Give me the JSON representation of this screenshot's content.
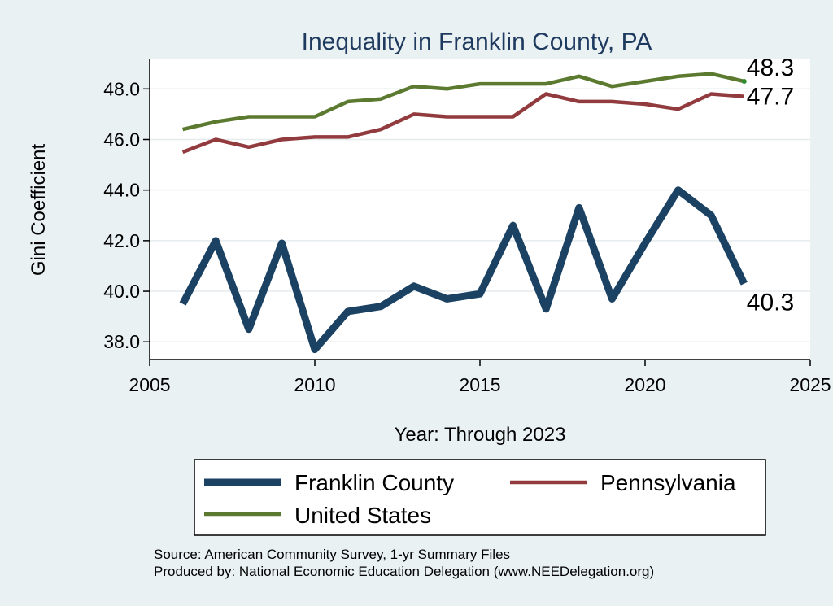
{
  "chart_data": {
    "type": "line",
    "title": "Inequality in Franklin County, PA",
    "xlabel": "Year: Through 2023",
    "ylabel": "Gini Coefficient",
    "xlim": [
      2005,
      2025
    ],
    "ylim": [
      37.3,
      49.2
    ],
    "xticks": [
      2005,
      2010,
      2015,
      2020,
      2025
    ],
    "yticks": [
      38,
      40,
      42,
      44,
      46,
      48
    ],
    "ytick_labels": [
      "38.0",
      "40.0",
      "42.0",
      "44.0",
      "46.0",
      "48.0"
    ],
    "grid": true,
    "legend_position": "bottom",
    "x": [
      2006,
      2007,
      2008,
      2009,
      2010,
      2011,
      2012,
      2013,
      2014,
      2015,
      2016,
      2017,
      2018,
      2019,
      2020,
      2021,
      2022,
      2023
    ],
    "series": [
      {
        "name": "Franklin County",
        "color": "#1b4263",
        "values": [
          39.5,
          42.0,
          38.5,
          41.9,
          37.7,
          39.2,
          39.4,
          40.2,
          39.7,
          39.9,
          42.6,
          39.3,
          43.3,
          39.7,
          41.9,
          44.0,
          43.0,
          40.3
        ],
        "end_label": "40.3"
      },
      {
        "name": "Pennsylvania",
        "color": "#923b3f",
        "values": [
          45.5,
          46.0,
          45.7,
          46.0,
          46.1,
          46.1,
          46.4,
          47.0,
          46.9,
          46.9,
          46.9,
          47.8,
          47.5,
          47.5,
          47.4,
          47.2,
          47.8,
          47.7
        ],
        "end_label": "47.7"
      },
      {
        "name": "United States",
        "color": "#5b7a30",
        "values": [
          46.4,
          46.7,
          46.9,
          46.9,
          46.9,
          47.5,
          47.6,
          48.1,
          48.0,
          48.2,
          48.2,
          48.2,
          48.5,
          48.1,
          48.3,
          48.5,
          48.6,
          48.3
        ],
        "end_label": "48.3"
      }
    ]
  },
  "source": {
    "line1": "Source: American Community Survey, 1-yr Summary Files",
    "line2": "Produced by: National Economic Education Delegation (www.NEEDelegation.org)"
  }
}
